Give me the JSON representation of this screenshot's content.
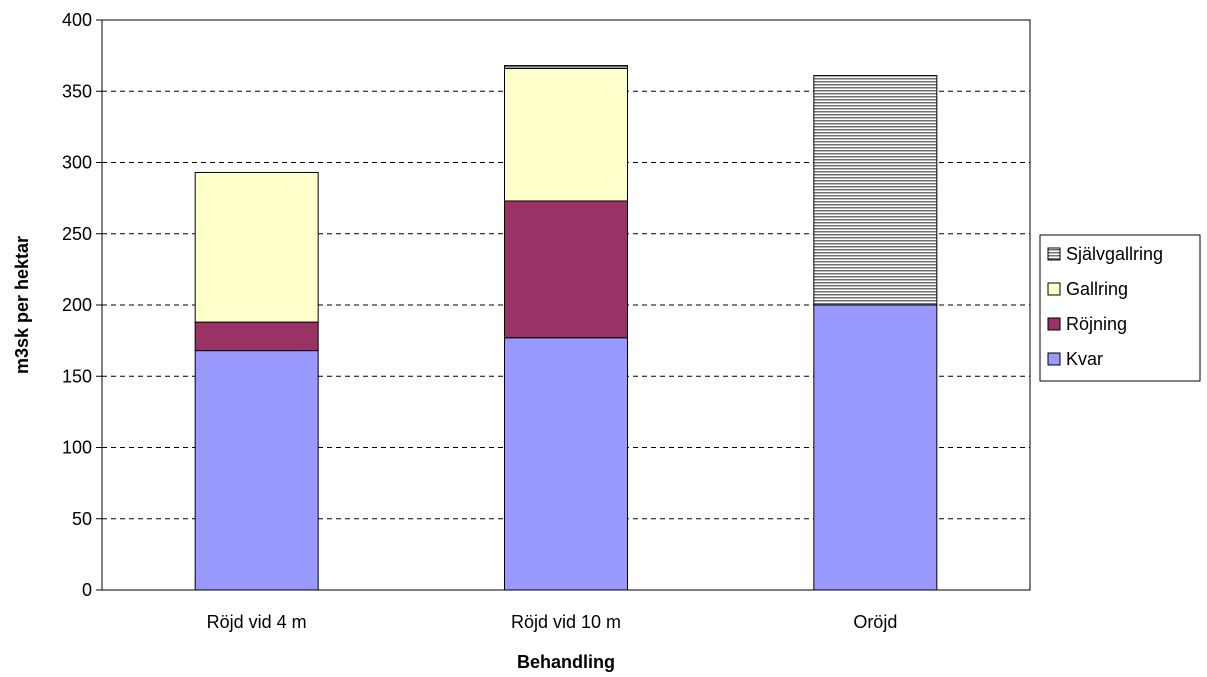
{
  "chart_data": {
    "type": "bar",
    "stacked": true,
    "categories": [
      "Röjd vid 4 m",
      "Röjd vid 10 m",
      "Oröjd"
    ],
    "series": [
      {
        "name": "Kvar",
        "values": [
          168,
          177,
          200
        ],
        "color": "#9999ff"
      },
      {
        "name": "Röjning",
        "values": [
          20,
          96,
          0
        ],
        "color": "#993366"
      },
      {
        "name": "Gallring",
        "values": [
          105,
          93,
          0
        ],
        "color": "#ffffcc"
      },
      {
        "name": "Självgallring",
        "values": [
          0,
          2,
          161
        ],
        "color": "#808080",
        "pattern": "horizontal-stripes"
      }
    ],
    "legend_order": [
      "Självgallring",
      "Gallring",
      "Röjning",
      "Kvar"
    ],
    "title": "",
    "xlabel": "Behandling",
    "ylabel": "m3sk per hektar",
    "ylim": [
      0,
      400
    ],
    "yticks": [
      0,
      50,
      100,
      150,
      200,
      250,
      300,
      350,
      400
    ],
    "grid": "horizontal-dashed",
    "legend_position": "right"
  }
}
